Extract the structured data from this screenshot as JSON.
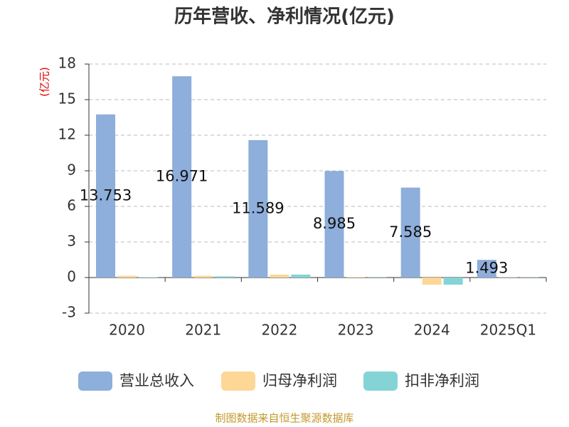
{
  "chart_data": {
    "type": "bar",
    "title": "历年营收、净利情况(亿元)",
    "y_label": "(亿元)",
    "categories": [
      "2020",
      "2021",
      "2022",
      "2023",
      "2024",
      "2025Q1"
    ],
    "series": [
      {
        "name": "营业总收入",
        "color": "#8eaedb",
        "values": [
          13.753,
          16.971,
          11.589,
          8.985,
          7.585,
          1.493
        ]
      },
      {
        "name": "归母净利润",
        "color": "#fdd796",
        "values": [
          0.15,
          0.15,
          0.25,
          0.05,
          -0.6,
          0.02
        ]
      },
      {
        "name": "扣非净利润",
        "color": "#84d4d6",
        "values": [
          0.03,
          0.1,
          0.25,
          0.02,
          -0.6,
          0.02
        ]
      }
    ],
    "label_series": 0,
    "ylim": [
      -3,
      18
    ],
    "yticks": [
      -3,
      0,
      3,
      6,
      9,
      12,
      15,
      18
    ],
    "grid": true,
    "legend": "bottom",
    "source": "制图数据来自恒生聚源数据库"
  }
}
